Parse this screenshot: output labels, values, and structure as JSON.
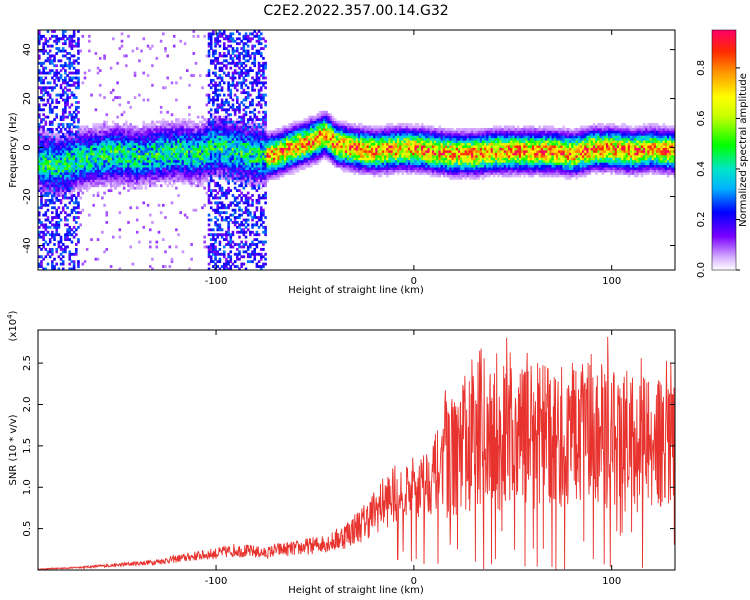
{
  "figure_title": "C2E2.2022.357.00.14.G32",
  "chart_data": [
    {
      "type": "heatmap",
      "title": "C2E2.2022.357.00.14.G32",
      "xlabel": "Height of straight line (km)",
      "ylabel": "Frequency (Hz)",
      "xlim": [
        -190,
        132
      ],
      "ylim": [
        -50,
        48
      ],
      "x_ticks": [
        -100,
        0,
        100
      ],
      "x_tick_labels": [
        "-100",
        "0",
        "100"
      ],
      "y_ticks": [
        40,
        20,
        0,
        -20,
        -40
      ],
      "y_tick_labels": [
        "40",
        "20",
        "0",
        "-20",
        "-40"
      ],
      "colorbar": {
        "label": "Normalized spectral amplitude",
        "range": [
          0,
          0.95
        ],
        "ticks": [
          0.0,
          0.2,
          0.4,
          0.6,
          0.8
        ],
        "tick_labels": [
          "0.0",
          "0.2",
          "0.4",
          "0.6",
          "0.8"
        ],
        "colormap": "rainbow"
      },
      "ridge": {
        "x": [
          -190,
          -180,
          -170,
          -160,
          -150,
          -140,
          -130,
          -120,
          -110,
          -100,
          -90,
          -75,
          -70,
          -60,
          -50,
          -45,
          -40,
          -30,
          -20,
          -10,
          0,
          10,
          20,
          30,
          40,
          50,
          60,
          70,
          80,
          90,
          100,
          110,
          120,
          130
        ],
        "y": [
          -6,
          -8,
          -5,
          -4,
          -3,
          -4,
          -3,
          -2,
          -3,
          0,
          -2,
          -4,
          -3,
          0,
          3,
          5,
          1,
          -1,
          -2,
          -1,
          -1,
          -2,
          -3,
          -3,
          -2,
          -2,
          -2,
          -2,
          -3,
          -1,
          -1,
          -2,
          -1,
          -2
        ]
      },
      "noisy_intervals": [
        [
          -190,
          -170
        ],
        [
          -105,
          -75
        ]
      ],
      "grid": false
    },
    {
      "type": "line",
      "xlabel": "Height of straight line (km)",
      "ylabel": "SNR (10 * v/v)",
      "y_scale_label": "(x10",
      "y_scale_exponent": "4",
      "y_scale_suffix": ")",
      "xlim": [
        -190,
        132
      ],
      "ylim": [
        0,
        2.9
      ],
      "x_ticks": [
        -100,
        0,
        100
      ],
      "x_tick_labels": [
        "-100",
        "0",
        "100"
      ],
      "y_ticks": [
        0.5,
        1.0,
        1.5,
        2.0,
        2.5
      ],
      "y_tick_labels": [
        "0.5",
        "1.0",
        "1.5",
        "2.0",
        "2.5"
      ],
      "series": [
        {
          "color": "#e8322d",
          "x": [
            -190,
            -170,
            -150,
            -130,
            -110,
            -100,
            -90,
            -80,
            -75,
            -70,
            -60,
            -50,
            -40,
            -35,
            -30,
            -25,
            -20,
            -15,
            -10,
            -5,
            0,
            5,
            10,
            15,
            20,
            25,
            30,
            40,
            50,
            60,
            70,
            80,
            90,
            100,
            110,
            120,
            130
          ],
          "y": [
            0.01,
            0.03,
            0.06,
            0.1,
            0.17,
            0.2,
            0.24,
            0.22,
            0.2,
            0.24,
            0.26,
            0.3,
            0.35,
            0.42,
            0.5,
            0.58,
            0.7,
            0.82,
            0.9,
            0.95,
            1.0,
            1.05,
            1.15,
            1.3,
            1.4,
            1.45,
            1.5,
            1.58,
            1.6,
            1.62,
            1.6,
            1.62,
            1.6,
            1.58,
            1.55,
            1.55,
            1.55
          ]
        }
      ],
      "grid": false
    }
  ]
}
